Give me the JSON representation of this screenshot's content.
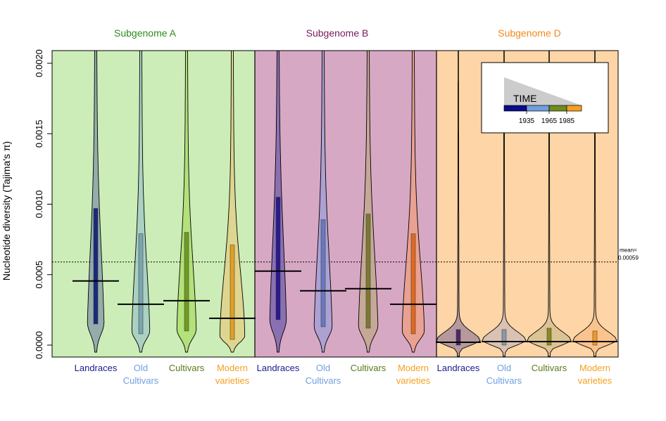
{
  "chart_data": {
    "type": "violin",
    "ylabel": "Nucleotide diversity (Tajima's π)",
    "ylim": [
      -8e-05,
      0.00208
    ],
    "yticks": [
      0.0,
      0.0005,
      0.001,
      0.0015,
      0.002
    ],
    "ytick_labels": [
      "0.0000",
      "0.0005",
      "0.0010",
      "0.0015",
      "0.0020"
    ],
    "mean_line": {
      "value": 0.00059,
      "label_line1": "mean=",
      "label_line2": "0.00059"
    },
    "colors": {
      "panelA": "#cdedb8",
      "panelB": "#d7a8c4",
      "panelD": "#fdd5a6",
      "Landraces": "#1a1a8c",
      "Old Cultivars": "#6f9fe0",
      "Cultivars": "#6f8c1f",
      "Modern varieties": "#f5a01e"
    },
    "groups": [
      {
        "subgenome": "Subgenome A",
        "title_color": "#2e8b1e",
        "categories": [
          {
            "label_lines": [
              "Landraces"
            ],
            "label_color": "#1a1a8c",
            "fill": "#8aa0a8",
            "box_color": "#1a2a7a",
            "mean": 0.000455,
            "q1": 0.00015,
            "q3": 0.00097,
            "spread": 0.3
          },
          {
            "label_lines": [
              "Old",
              "Cultivars"
            ],
            "label_color": "#6f9fe0",
            "fill": "#a3cbc2",
            "box_color": "#7aa6b0",
            "mean": 0.00029,
            "q1": 8e-05,
            "q3": 0.00079,
            "spread": 0.35
          },
          {
            "label_lines": [
              "Cultivars"
            ],
            "label_color": "#5a7a18",
            "fill": "#aede6e",
            "box_color": "#6f9a22",
            "mean": 0.000315,
            "q1": 0.0001,
            "q3": 0.0008,
            "spread": 0.4
          },
          {
            "label_lines": [
              "Modern",
              "varieties"
            ],
            "label_color": "#f5a01e",
            "fill": "#e0d088",
            "box_color": "#e0a022",
            "mean": 0.00019,
            "q1": 4e-05,
            "q3": 0.00071,
            "spread": 0.6
          }
        ]
      },
      {
        "subgenome": "Subgenome B",
        "title_color": "#7a1a5a",
        "categories": [
          {
            "label_lines": [
              "Landraces"
            ],
            "label_color": "#1a1a8c",
            "fill": "#7e66ae",
            "box_color": "#2a1a8c",
            "mean": 0.000525,
            "q1": 0.00018,
            "q3": 0.00105,
            "spread": 0.3
          },
          {
            "label_lines": [
              "Old",
              "Cultivars"
            ],
            "label_color": "#6f9fe0",
            "fill": "#a6a0d6",
            "box_color": "#6a78c0",
            "mean": 0.000385,
            "q1": 0.00013,
            "q3": 0.00089,
            "spread": 0.35
          },
          {
            "label_lines": [
              "Cultivars"
            ],
            "label_color": "#5a7a18",
            "fill": "#c2a890",
            "box_color": "#7a7a30",
            "mean": 0.0004,
            "q1": 0.00012,
            "q3": 0.00093,
            "spread": 0.4
          },
          {
            "label_lines": [
              "Modern",
              "varieties"
            ],
            "label_color": "#f5a01e",
            "fill": "#eca088",
            "box_color": "#e06a20",
            "mean": 0.00029,
            "q1": 8e-05,
            "q3": 0.00079,
            "spread": 0.5
          }
        ]
      },
      {
        "subgenome": "Subgenome D",
        "title_color": "#f08a1a",
        "categories": [
          {
            "label_lines": [
              "Landraces"
            ],
            "label_color": "#1a1a8c",
            "fill": "#a88e9a",
            "box_color": "#4a2a6a",
            "mean": 2e-05,
            "q1": 0.0,
            "q3": 0.00011,
            "spread": 1.0
          },
          {
            "label_lines": [
              "Old",
              "Cultivars"
            ],
            "label_color": "#6f9fe0",
            "fill": "#d4bdb6",
            "box_color": "#8a9aa8",
            "mean": 2.5e-05,
            "q1": 0.0,
            "q3": 0.00011,
            "spread": 1.0
          },
          {
            "label_lines": [
              "Cultivars"
            ],
            "label_color": "#5a7a18",
            "fill": "#d6c090",
            "box_color": "#8a8a20",
            "mean": 2.5e-05,
            "q1": 0.0,
            "q3": 0.00012,
            "spread": 1.0
          },
          {
            "label_lines": [
              "Modern",
              "varieties"
            ],
            "label_color": "#f5a01e",
            "fill": "#fac088",
            "box_color": "#f09a20",
            "mean": 2.5e-05,
            "q1": 0.0,
            "q3": 0.0001,
            "spread": 1.0
          }
        ]
      }
    ],
    "legend": {
      "title": "TIME",
      "tick_labels": [
        "1935",
        "1965",
        "1985"
      ],
      "segments": [
        "#0a0a8c",
        "#6f9fe0",
        "#6f8c1f",
        "#f5a01e"
      ]
    }
  }
}
